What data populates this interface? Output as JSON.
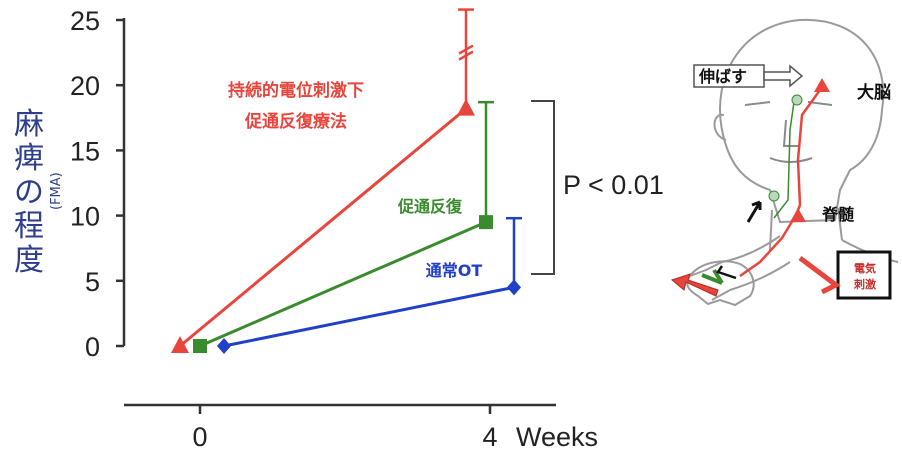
{
  "chart_data": {
    "type": "line",
    "x": [
      0,
      4
    ],
    "x_tick_labels": [
      "0",
      "4"
    ],
    "x_unit": "Weeks",
    "ylabel": "麻痺の程度",
    "ylabel_sub": "(FMA)",
    "ylim": [
      0,
      25
    ],
    "y_ticks": [
      "0",
      "5",
      "10",
      "15",
      "20",
      "25"
    ],
    "grid": false,
    "series": [
      {
        "name": "持続的電位刺激下\n促通反復療法",
        "label_lines": [
          "持続的電位刺激下",
          "促通反復療法"
        ],
        "color": "#e8453c",
        "marker": "triangle",
        "values": [
          0,
          18.2
        ],
        "error_upper": 25.8,
        "axis_break": true
      },
      {
        "name": "促通反復",
        "label_lines": [
          "促通反復"
        ],
        "color": "#3a8a2e",
        "marker": "square",
        "values": [
          0,
          9.5
        ],
        "error_upper": 18.7
      },
      {
        "name": "通常OT",
        "label_lines": [
          "通常OT"
        ],
        "color": "#2140c8",
        "marker": "diamond",
        "values": [
          0,
          4.5
        ],
        "error_upper": 9.8
      }
    ],
    "annotation": {
      "text": "P < 0.01"
    }
  },
  "diagram": {
    "labels": {
      "stretch": "伸ばす",
      "brain": "大脳",
      "spinal_cord": "脊髄",
      "stim_line1": "電気",
      "stim_line2": "刺激"
    },
    "colors": {
      "neuron": "#e8453c",
      "sensory": "#3a8a2e",
      "stim_box": "#c4302b"
    }
  }
}
